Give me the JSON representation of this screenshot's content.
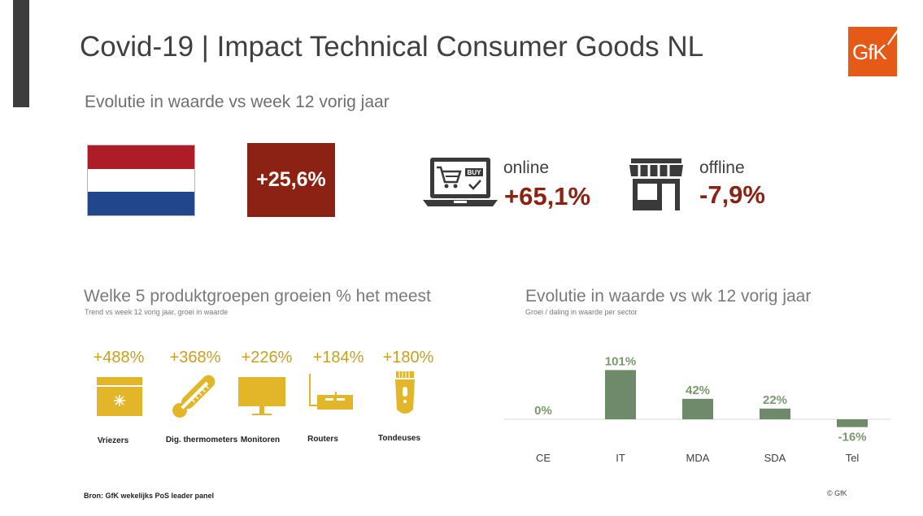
{
  "header": {
    "title": "Covid-19 | Impact Technical Consumer Goods NL",
    "logo_text": "GfK",
    "subtitle": "Evolutie in waarde vs week 12 vorig jaar"
  },
  "kpis": {
    "total_value": "+25,6%",
    "online_label": "online",
    "online_value": "+65,1%",
    "offline_label": "offline",
    "offline_value": "-7,9%",
    "buy_text": "BUY"
  },
  "products": {
    "title": "Welke 5 produktgroepen groeien % het meest",
    "subtitle": "Trend vs week 12 vorig jaar, groei in waarde",
    "items": [
      {
        "pct": "+488%",
        "label": "Vriezers",
        "icon": "freezer-icon"
      },
      {
        "pct": "+368%",
        "label": "Dig. thermometers",
        "icon": "thermometer-icon"
      },
      {
        "pct": "+226%",
        "label": "Monitoren",
        "icon": "monitor-icon"
      },
      {
        "pct": "+184%",
        "label": "Routers",
        "icon": "router-icon"
      },
      {
        "pct": "+180%",
        "label": "Tondeuses",
        "icon": "clipper-icon"
      }
    ]
  },
  "chart_section": {
    "title": "Evolutie in waarde vs wk 12 vorig jaar",
    "subtitle": "Groei / daling in waarde per sector"
  },
  "chart_data": {
    "type": "bar",
    "categories": [
      "CE",
      "IT",
      "MDA",
      "SDA",
      "Tel"
    ],
    "values": [
      0,
      101,
      42,
      22,
      -16
    ],
    "data_labels": [
      "0%",
      "101%",
      "42%",
      "22%",
      "-16%"
    ],
    "title": "Evolutie in waarde vs wk 12 vorig jaar",
    "subtitle": "Groei / daling in waarde per sector",
    "xlabel": "",
    "ylabel": "",
    "grid": false,
    "bar_color": "#6e8a6b",
    "label_color": "#7a9a6e"
  },
  "footer": {
    "source": "Bron: GfK wekelijks PoS leader panel",
    "copyright": "© GfK"
  },
  "colors": {
    "accent_dark": "#3d3d3d",
    "brand_orange": "#e55a16",
    "value_red": "#8b2213",
    "gold": "#c9a01f",
    "flag_red": "#ae1c28",
    "flag_white": "#ffffff",
    "flag_blue": "#21468b"
  }
}
